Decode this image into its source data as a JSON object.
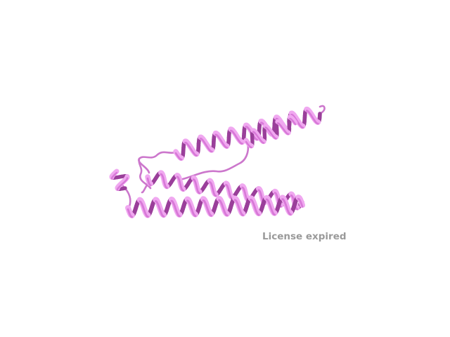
{
  "viewer": {
    "background": "#ffffff",
    "watermark": "License expired",
    "watermark_color": "#9a9a9a"
  },
  "structure": {
    "representation": "cartoon",
    "icon": "protein-ribbon-render",
    "colors": {
      "helix_light": "#f0a8f0",
      "helix_mid": "#d879d8",
      "helix_dark": "#9a3f9a",
      "coil": "#cc77cc"
    }
  }
}
